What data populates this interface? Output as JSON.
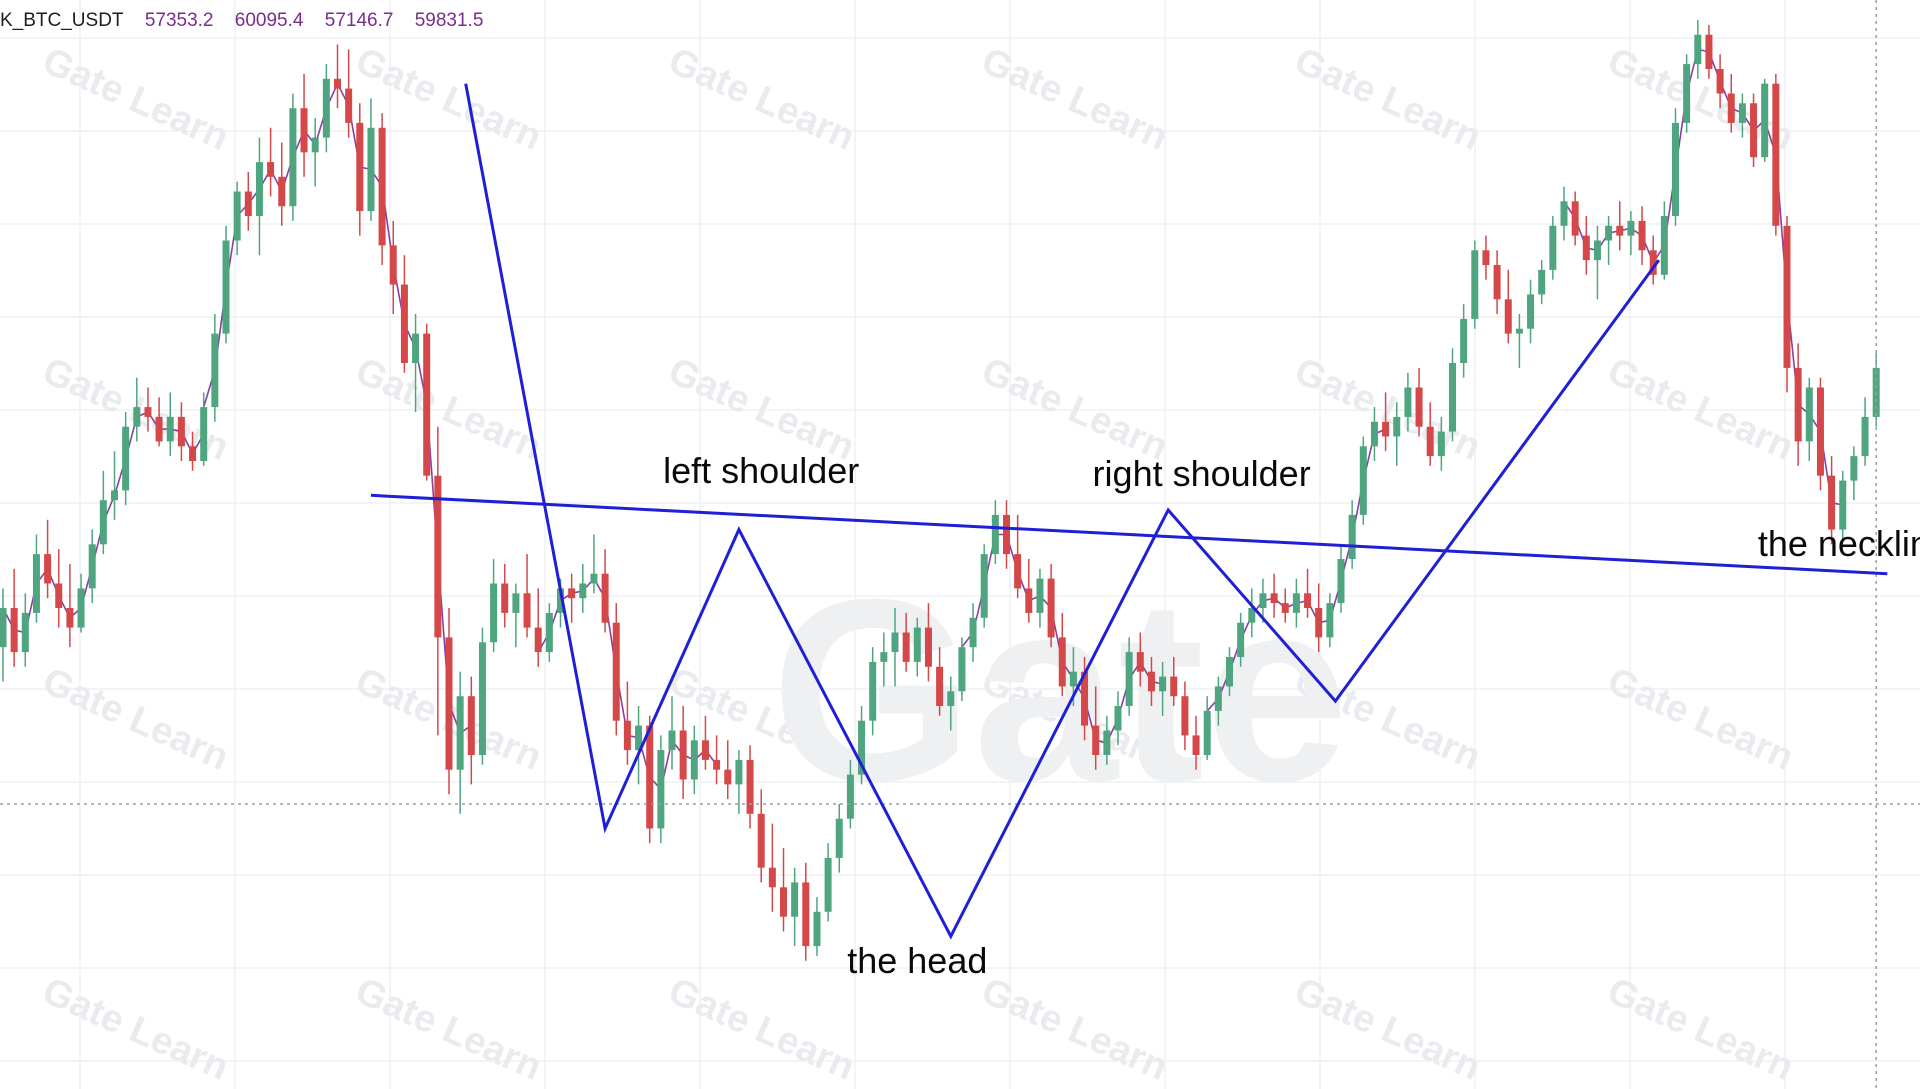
{
  "header": {
    "symbol": "K_BTC_USDT",
    "open": "57353.2",
    "high": "60095.4",
    "low": "57146.7",
    "close": "59831.5"
  },
  "colors": {
    "up": "#4ea57f",
    "down": "#d4484a",
    "pattern_line": "#1f1fd6",
    "ma_line": "#8a3fa0",
    "grid": "#eef0f3",
    "crosshair": "#9aa0a8"
  },
  "chart_data": {
    "type": "candlestick",
    "title": "",
    "xlabel": "",
    "ylabel": "",
    "ylim": [
      52500,
      62500
    ],
    "grid": true,
    "candles": [
      {
        "o": 56100,
        "h": 56700,
        "l": 55750,
        "c": 56500
      },
      {
        "o": 56500,
        "h": 56900,
        "l": 55900,
        "c": 56050
      },
      {
        "o": 56050,
        "h": 56650,
        "l": 55900,
        "c": 56450
      },
      {
        "o": 56450,
        "h": 57250,
        "l": 56350,
        "c": 57050
      },
      {
        "o": 57050,
        "h": 57400,
        "l": 56600,
        "c": 56750
      },
      {
        "o": 56750,
        "h": 57100,
        "l": 56300,
        "c": 56500
      },
      {
        "o": 56500,
        "h": 56950,
        "l": 56100,
        "c": 56300
      },
      {
        "o": 56300,
        "h": 56850,
        "l": 56250,
        "c": 56700
      },
      {
        "o": 56700,
        "h": 57300,
        "l": 56550,
        "c": 57150
      },
      {
        "o": 57150,
        "h": 57900,
        "l": 57050,
        "c": 57600
      },
      {
        "o": 57600,
        "h": 58100,
        "l": 57400,
        "c": 57700
      },
      {
        "o": 57700,
        "h": 58500,
        "l": 57550,
        "c": 58350
      },
      {
        "o": 58350,
        "h": 58850,
        "l": 58200,
        "c": 58550
      },
      {
        "o": 58550,
        "h": 58750,
        "l": 58300,
        "c": 58450
      },
      {
        "o": 58450,
        "h": 58650,
        "l": 58150,
        "c": 58200
      },
      {
        "o": 58200,
        "h": 58700,
        "l": 58050,
        "c": 58450
      },
      {
        "o": 58450,
        "h": 58600,
        "l": 58000,
        "c": 58150
      },
      {
        "o": 58150,
        "h": 58300,
        "l": 57900,
        "c": 58000
      },
      {
        "o": 58000,
        "h": 58700,
        "l": 57950,
        "c": 58550
      },
      {
        "o": 58550,
        "h": 59500,
        "l": 58400,
        "c": 59300
      },
      {
        "o": 59300,
        "h": 60400,
        "l": 59200,
        "c": 60250
      },
      {
        "o": 60250,
        "h": 60850,
        "l": 60100,
        "c": 60750
      },
      {
        "o": 60750,
        "h": 60950,
        "l": 60350,
        "c": 60500
      },
      {
        "o": 60500,
        "h": 61300,
        "l": 60100,
        "c": 61050
      },
      {
        "o": 61050,
        "h": 61400,
        "l": 60700,
        "c": 60900
      },
      {
        "o": 60900,
        "h": 61250,
        "l": 60400,
        "c": 60600
      },
      {
        "o": 60600,
        "h": 61750,
        "l": 60450,
        "c": 61600
      },
      {
        "o": 61600,
        "h": 61950,
        "l": 60900,
        "c": 61150
      },
      {
        "o": 61150,
        "h": 61500,
        "l": 60800,
        "c": 61300
      },
      {
        "o": 61300,
        "h": 62050,
        "l": 61150,
        "c": 61900
      },
      {
        "o": 61900,
        "h": 62250,
        "l": 61600,
        "c": 61800
      },
      {
        "o": 61800,
        "h": 62200,
        "l": 61300,
        "c": 61450
      },
      {
        "o": 61450,
        "h": 61650,
        "l": 60300,
        "c": 60550
      },
      {
        "o": 60550,
        "h": 61700,
        "l": 60450,
        "c": 61400
      },
      {
        "o": 61400,
        "h": 61550,
        "l": 60000,
        "c": 60200
      },
      {
        "o": 60200,
        "h": 60450,
        "l": 59500,
        "c": 59800
      },
      {
        "o": 59800,
        "h": 60100,
        "l": 58900,
        "c": 59000
      },
      {
        "o": 59000,
        "h": 59500,
        "l": 58500,
        "c": 59300
      },
      {
        "o": 59300,
        "h": 59400,
        "l": 57800,
        "c": 57850
      },
      {
        "o": 57850,
        "h": 58350,
        "l": 55200,
        "c": 56200
      },
      {
        "o": 56200,
        "h": 56500,
        "l": 54600,
        "c": 54850
      },
      {
        "o": 54850,
        "h": 55850,
        "l": 54400,
        "c": 55600
      },
      {
        "o": 55600,
        "h": 55800,
        "l": 54700,
        "c": 55000
      },
      {
        "o": 55000,
        "h": 56300,
        "l": 54900,
        "c": 56150
      },
      {
        "o": 56150,
        "h": 57000,
        "l": 56050,
        "c": 56750
      },
      {
        "o": 56750,
        "h": 56950,
        "l": 56300,
        "c": 56450
      },
      {
        "o": 56450,
        "h": 56750,
        "l": 56100,
        "c": 56650
      },
      {
        "o": 56650,
        "h": 57050,
        "l": 56200,
        "c": 56300
      },
      {
        "o": 56300,
        "h": 56700,
        "l": 55900,
        "c": 56050
      },
      {
        "o": 56050,
        "h": 56550,
        "l": 55950,
        "c": 56450
      },
      {
        "o": 56450,
        "h": 56800,
        "l": 56300,
        "c": 56700
      },
      {
        "o": 56700,
        "h": 56850,
        "l": 56350,
        "c": 56600
      },
      {
        "o": 56600,
        "h": 56950,
        "l": 56450,
        "c": 56750
      },
      {
        "o": 56750,
        "h": 57250,
        "l": 56650,
        "c": 56850
      },
      {
        "o": 56850,
        "h": 57100,
        "l": 56250,
        "c": 56350
      },
      {
        "o": 56350,
        "h": 56550,
        "l": 55200,
        "c": 55350
      },
      {
        "o": 55350,
        "h": 55750,
        "l": 54900,
        "c": 55050
      },
      {
        "o": 55050,
        "h": 55500,
        "l": 54700,
        "c": 55300
      },
      {
        "o": 55300,
        "h": 55400,
        "l": 54100,
        "c": 54250
      },
      {
        "o": 54250,
        "h": 55200,
        "l": 54100,
        "c": 55050
      },
      {
        "o": 55050,
        "h": 55600,
        "l": 54850,
        "c": 55250
      },
      {
        "o": 55250,
        "h": 55500,
        "l": 54550,
        "c": 54750
      },
      {
        "o": 54750,
        "h": 55300,
        "l": 54600,
        "c": 55150
      },
      {
        "o": 55150,
        "h": 55400,
        "l": 54850,
        "c": 54950
      },
      {
        "o": 54950,
        "h": 55200,
        "l": 54700,
        "c": 54850
      },
      {
        "o": 54850,
        "h": 55150,
        "l": 54550,
        "c": 54700
      },
      {
        "o": 54700,
        "h": 55050,
        "l": 54400,
        "c": 54950
      },
      {
        "o": 54950,
        "h": 55100,
        "l": 54250,
        "c": 54400
      },
      {
        "o": 54400,
        "h": 54650,
        "l": 53700,
        "c": 53850
      },
      {
        "o": 53850,
        "h": 54300,
        "l": 53400,
        "c": 53650
      },
      {
        "o": 53650,
        "h": 54050,
        "l": 53200,
        "c": 53350
      },
      {
        "o": 53350,
        "h": 53850,
        "l": 53050,
        "c": 53700
      },
      {
        "o": 53700,
        "h": 53900,
        "l": 52900,
        "c": 53050
      },
      {
        "o": 53050,
        "h": 53550,
        "l": 52950,
        "c": 53400
      },
      {
        "o": 53400,
        "h": 54100,
        "l": 53300,
        "c": 53950
      },
      {
        "o": 53950,
        "h": 54500,
        "l": 53800,
        "c": 54350
      },
      {
        "o": 54350,
        "h": 54950,
        "l": 54250,
        "c": 54800
      },
      {
        "o": 54800,
        "h": 55500,
        "l": 54700,
        "c": 55350
      },
      {
        "o": 55350,
        "h": 56100,
        "l": 55200,
        "c": 55950
      },
      {
        "o": 55950,
        "h": 56250,
        "l": 55700,
        "c": 56050
      },
      {
        "o": 56050,
        "h": 56500,
        "l": 55700,
        "c": 56250
      },
      {
        "o": 56250,
        "h": 56450,
        "l": 55850,
        "c": 55950
      },
      {
        "o": 55950,
        "h": 56400,
        "l": 55800,
        "c": 56300
      },
      {
        "o": 56300,
        "h": 56550,
        "l": 55750,
        "c": 55900
      },
      {
        "o": 55900,
        "h": 56100,
        "l": 55400,
        "c": 55500
      },
      {
        "o": 55500,
        "h": 55800,
        "l": 55250,
        "c": 55650
      },
      {
        "o": 55650,
        "h": 56200,
        "l": 55550,
        "c": 56100
      },
      {
        "o": 56100,
        "h": 56550,
        "l": 55950,
        "c": 56400
      },
      {
        "o": 56400,
        "h": 57150,
        "l": 56300,
        "c": 57050
      },
      {
        "o": 57050,
        "h": 57600,
        "l": 56950,
        "c": 57450
      },
      {
        "o": 57450,
        "h": 57600,
        "l": 56900,
        "c": 57050
      },
      {
        "o": 57050,
        "h": 57450,
        "l": 56600,
        "c": 56700
      },
      {
        "o": 56700,
        "h": 57000,
        "l": 56350,
        "c": 56450
      },
      {
        "o": 56450,
        "h": 56900,
        "l": 56300,
        "c": 56800
      },
      {
        "o": 56800,
        "h": 56950,
        "l": 56100,
        "c": 56200
      },
      {
        "o": 56200,
        "h": 56450,
        "l": 55600,
        "c": 55700
      },
      {
        "o": 55700,
        "h": 56100,
        "l": 55500,
        "c": 55850
      },
      {
        "o": 55850,
        "h": 56000,
        "l": 55150,
        "c": 55300
      },
      {
        "o": 55300,
        "h": 55700,
        "l": 54850,
        "c": 55000
      },
      {
        "o": 55000,
        "h": 55400,
        "l": 54900,
        "c": 55250
      },
      {
        "o": 55250,
        "h": 55650,
        "l": 55100,
        "c": 55500
      },
      {
        "o": 55500,
        "h": 56200,
        "l": 55400,
        "c": 56050
      },
      {
        "o": 56050,
        "h": 56250,
        "l": 55700,
        "c": 55850
      },
      {
        "o": 55850,
        "h": 56000,
        "l": 55500,
        "c": 55650
      },
      {
        "o": 55650,
        "h": 55950,
        "l": 55400,
        "c": 55800
      },
      {
        "o": 55800,
        "h": 56000,
        "l": 55500,
        "c": 55600
      },
      {
        "o": 55600,
        "h": 55750,
        "l": 55050,
        "c": 55200
      },
      {
        "o": 55200,
        "h": 55400,
        "l": 54850,
        "c": 55000
      },
      {
        "o": 55000,
        "h": 55600,
        "l": 54950,
        "c": 55450
      },
      {
        "o": 55450,
        "h": 55800,
        "l": 55300,
        "c": 55700
      },
      {
        "o": 55700,
        "h": 56100,
        "l": 55600,
        "c": 56000
      },
      {
        "o": 56000,
        "h": 56450,
        "l": 55900,
        "c": 56350
      },
      {
        "o": 56350,
        "h": 56700,
        "l": 56200,
        "c": 56500
      },
      {
        "o": 56500,
        "h": 56800,
        "l": 56350,
        "c": 56650
      },
      {
        "o": 56650,
        "h": 56850,
        "l": 56400,
        "c": 56550
      },
      {
        "o": 56550,
        "h": 56700,
        "l": 56350,
        "c": 56450
      },
      {
        "o": 56450,
        "h": 56800,
        "l": 56300,
        "c": 56650
      },
      {
        "o": 56650,
        "h": 56900,
        "l": 56400,
        "c": 56500
      },
      {
        "o": 56500,
        "h": 56750,
        "l": 56050,
        "c": 56200
      },
      {
        "o": 56200,
        "h": 56650,
        "l": 56100,
        "c": 56550
      },
      {
        "o": 56550,
        "h": 57150,
        "l": 56450,
        "c": 57000
      },
      {
        "o": 57000,
        "h": 57600,
        "l": 56900,
        "c": 57450
      },
      {
        "o": 57450,
        "h": 58250,
        "l": 57350,
        "c": 58150
      },
      {
        "o": 58150,
        "h": 58550,
        "l": 58000,
        "c": 58400
      },
      {
        "o": 58400,
        "h": 58700,
        "l": 58100,
        "c": 58250
      },
      {
        "o": 58250,
        "h": 58600,
        "l": 57950,
        "c": 58450
      },
      {
        "o": 58450,
        "h": 58900,
        "l": 58300,
        "c": 58750
      },
      {
        "o": 58750,
        "h": 58950,
        "l": 58250,
        "c": 58350
      },
      {
        "o": 58350,
        "h": 58600,
        "l": 57950,
        "c": 58050
      },
      {
        "o": 58050,
        "h": 58450,
        "l": 57900,
        "c": 58300
      },
      {
        "o": 58300,
        "h": 59150,
        "l": 58200,
        "c": 59000
      },
      {
        "o": 59000,
        "h": 59600,
        "l": 58850,
        "c": 59450
      },
      {
        "o": 59450,
        "h": 60250,
        "l": 59350,
        "c": 60150
      },
      {
        "o": 60150,
        "h": 60300,
        "l": 59850,
        "c": 60000
      },
      {
        "o": 60000,
        "h": 60150,
        "l": 59500,
        "c": 59650
      },
      {
        "o": 59650,
        "h": 59950,
        "l": 59200,
        "c": 59300
      },
      {
        "o": 59300,
        "h": 59500,
        "l": 58950,
        "c": 59350
      },
      {
        "o": 59350,
        "h": 59850,
        "l": 59200,
        "c": 59700
      },
      {
        "o": 59700,
        "h": 60050,
        "l": 59600,
        "c": 59950
      },
      {
        "o": 59950,
        "h": 60500,
        "l": 59850,
        "c": 60400
      },
      {
        "o": 60400,
        "h": 60800,
        "l": 60250,
        "c": 60650
      },
      {
        "o": 60650,
        "h": 60750,
        "l": 60200,
        "c": 60300
      },
      {
        "o": 60300,
        "h": 60500,
        "l": 59900,
        "c": 60050
      },
      {
        "o": 60050,
        "h": 60400,
        "l": 59650,
        "c": 60250
      },
      {
        "o": 60250,
        "h": 60500,
        "l": 60000,
        "c": 60400
      },
      {
        "o": 60400,
        "h": 60650,
        "l": 60150,
        "c": 60300
      },
      {
        "o": 60300,
        "h": 60550,
        "l": 60100,
        "c": 60450
      },
      {
        "o": 60450,
        "h": 60600,
        "l": 60000,
        "c": 60150
      },
      {
        "o": 60150,
        "h": 60300,
        "l": 59800,
        "c": 59900
      },
      {
        "o": 59900,
        "h": 60650,
        "l": 59850,
        "c": 60500
      },
      {
        "o": 60500,
        "h": 61600,
        "l": 60400,
        "c": 61450
      },
      {
        "o": 61450,
        "h": 62150,
        "l": 61350,
        "c": 62050
      },
      {
        "o": 62050,
        "h": 62500,
        "l": 61900,
        "c": 62350
      },
      {
        "o": 62350,
        "h": 62450,
        "l": 61900,
        "c": 62000
      },
      {
        "o": 62000,
        "h": 62150,
        "l": 61600,
        "c": 61750
      },
      {
        "o": 61750,
        "h": 61950,
        "l": 61350,
        "c": 61450
      },
      {
        "o": 61450,
        "h": 61750,
        "l": 61300,
        "c": 61650
      },
      {
        "o": 61650,
        "h": 61750,
        "l": 61000,
        "c": 61100
      },
      {
        "o": 61100,
        "h": 61900,
        "l": 61050,
        "c": 61850
      },
      {
        "o": 61850,
        "h": 61950,
        "l": 60300,
        "c": 60400
      },
      {
        "o": 60400,
        "h": 60500,
        "l": 58700,
        "c": 58950
      },
      {
        "o": 58950,
        "h": 59200,
        "l": 57950,
        "c": 58200
      },
      {
        "o": 58200,
        "h": 58850,
        "l": 58000,
        "c": 58750
      },
      {
        "o": 58750,
        "h": 58850,
        "l": 57700,
        "c": 57850
      },
      {
        "o": 57850,
        "h": 58050,
        "l": 57150,
        "c": 57300
      },
      {
        "o": 57300,
        "h": 57900,
        "l": 57200,
        "c": 57800
      },
      {
        "o": 57800,
        "h": 58150,
        "l": 57600,
        "c": 58050
      },
      {
        "o": 58050,
        "h": 58650,
        "l": 57950,
        "c": 58450
      },
      {
        "o": 58450,
        "h": 59100,
        "l": 58350,
        "c": 58950
      }
    ],
    "pattern_line": [
      {
        "i": 41.5,
        "p": 61850
      },
      {
        "i": 54.0,
        "p": 54250
      },
      {
        "i": 66.0,
        "p": 57300
      },
      {
        "i": 85.0,
        "p": 53150
      },
      {
        "i": 104.5,
        "p": 57500
      },
      {
        "i": 119.5,
        "p": 55550
      },
      {
        "i": 148.5,
        "p": 60050
      }
    ],
    "neckline": [
      {
        "i": 33,
        "p": 57650
      },
      {
        "i": 169,
        "p": 56850
      }
    ],
    "ma_segments": [
      {
        "from": 0,
        "to": 18
      },
      {
        "from": 18,
        "to": 42
      },
      {
        "from": 48,
        "to": 64
      },
      {
        "from": 86,
        "to": 104
      },
      {
        "from": 108,
        "to": 124
      },
      {
        "from": 140,
        "to": 165
      }
    ],
    "crosshair": {
      "i": 168,
      "p": 54500
    },
    "price_level": {
      "i_from": 176,
      "p": 61150
    },
    "annotations": [
      {
        "text": "left shoulder",
        "i": 68,
        "p": 57900
      },
      {
        "text": "right shoulder",
        "i": 107.5,
        "p": 57870
      },
      {
        "text": "the head",
        "i": 82,
        "p": 52900
      },
      {
        "text": "the neckline",
        "i": 166,
        "p": 57150
      }
    ],
    "watermark": {
      "text": "Gate",
      "tile_text": "Gate Learn"
    }
  }
}
